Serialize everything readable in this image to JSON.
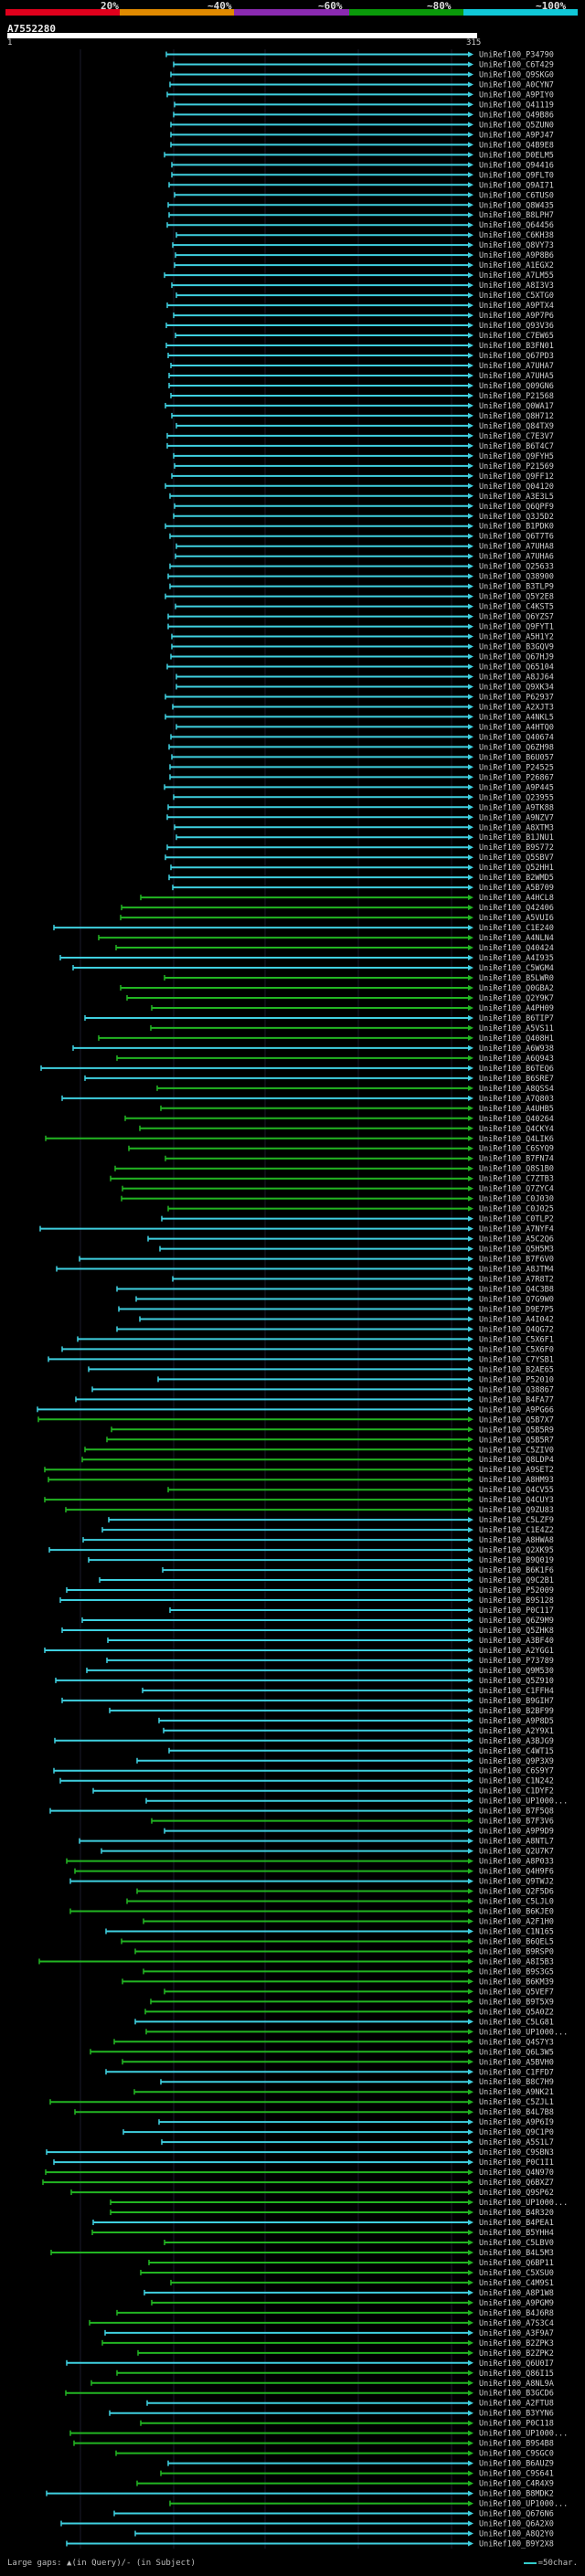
{
  "header": {
    "percent_labels": [
      "20%",
      "~40%",
      "~60%",
      "~80%",
      "~100%"
    ],
    "colorbar": [
      "#e0001c",
      "#e08a00",
      "#8a2ab0",
      "#0a9a0a",
      "#10c8d8"
    ],
    "query_id": "A7552280",
    "ruler_start": "1",
    "ruler_end": "315"
  },
  "hits": {
    "colors": {
      "cyan": "#3fd0e0",
      "green": "#22b522",
      "ids": "#cfcfcf"
    },
    "ids": [
      "UniRef100_P34790",
      "UniRef100_C6T429",
      "UniRef100_Q9SKG0",
      "UniRef100_A0CYN7",
      "UniRef100_A9PIY0",
      "UniRef100_Q41119",
      "UniRef100_Q49B86",
      "UniRef100_Q5ZUN0",
      "UniRef100_A9PJ47",
      "UniRef100_Q4B9E8",
      "UniRef100_D0ELM5",
      "UniRef100_Q94416",
      "UniRef100_Q9FLT0",
      "UniRef100_Q9AI71",
      "UniRef100_C6TUS0",
      "UniRef100_Q8W435",
      "UniRef100_B8LPH7",
      "UniRef100_Q64456",
      "UniRef100_C6KH38",
      "UniRef100_Q8VY73",
      "UniRef100_A9P8B6",
      "UniRef100_A1EGX2",
      "UniRef100_A7LM55",
      "UniRef100_A8I3V3",
      "UniRef100_C5XTG0",
      "UniRef100_A9PTX4",
      "UniRef100_A9P7P6",
      "UniRef100_Q93V36",
      "UniRef100_C7EW65",
      "UniRef100_B3FN01",
      "UniRef100_Q67PD3",
      "UniRef100_A7UHA7",
      "UniRef100_A7UHA5",
      "UniRef100_Q09GN6",
      "UniRef100_P21568",
      "UniRef100_Q0WA17",
      "UniRef100_Q8H712",
      "UniRef100_Q84TX9",
      "UniRef100_C7E3V7",
      "UniRef100_B6T4C7",
      "UniRef100_Q9FYH5",
      "UniRef100_P21569",
      "UniRef100_Q9FF12",
      "UniRef100_Q04120",
      "UniRef100_A3E3L5",
      "UniRef100_Q6QPF9",
      "UniRef100_Q3J5D2",
      "UniRef100_B1PDK0",
      "UniRef100_Q6T7T6",
      "UniRef100_A7UHA8",
      "UniRef100_A7UHA6",
      "UniRef100_Q25633",
      "UniRef100_Q38900",
      "UniRef100_B3TLP9",
      "UniRef100_Q5Y2E8",
      "UniRef100_C4KST5",
      "UniRef100_Q6YZS7",
      "UniRef100_Q9FYT1",
      "UniRef100_A5H1Y2",
      "UniRef100_B3GQV9",
      "UniRef100_Q67HJ9",
      "UniRef100_Q65104",
      "UniRef100_A8JJ64",
      "UniRef100_Q9XK34",
      "UniRef100_P62937",
      "UniRef100_A2XJT3",
      "UniRef100_A4NKL5",
      "UniRef100_A4HTQ0",
      "UniRef100_Q40674",
      "UniRef100_Q6ZH98",
      "UniRef100_B6U057",
      "UniRef100_P24525",
      "UniRef100_P26867",
      "UniRef100_A9P445",
      "UniRef100_Q23955",
      "UniRef100_A9TK88",
      "UniRef100_A9NZV7",
      "UniRef100_A8XTM3",
      "UniRef100_B1JNU1",
      "UniRef100_B9S772",
      "UniRef100_Q5SBV7",
      "UniRef100_Q52HH1",
      "UniRef100_B2WMD5",
      "UniRef100_A5B709",
      "UniRef100_A4HCL8",
      "UniRef100_Q42406",
      "UniRef100_A5VUI6",
      "UniRef100_C1E240",
      "UniRef100_A4NLN4",
      "UniRef100_Q40424",
      "UniRef100_A4I935",
      "UniRef100_C5WGM4",
      "UniRef100_B5LWR0",
      "UniRef100_Q0GBA2",
      "UniRef100_Q2Y9K7",
      "UniRef100_A4PH09",
      "UniRef100_B6TIP7",
      "UniRef100_A5VS11",
      "UniRef100_Q408H1",
      "UniRef100_A6W938",
      "UniRef100_A6Q943",
      "UniRef100_B6TEQ6",
      "UniRef100_B6SRE7",
      "UniRef100_A8QSS4",
      "UniRef100_A7Q803",
      "UniRef100_A4UHB5",
      "UniRef100_Q40264",
      "UniRef100_Q4CKY4",
      "UniRef100_Q4LIK6",
      "UniRef100_C6SYQ9",
      "UniRef100_B7FN74",
      "UniRef100_Q8S1B0",
      "UniRef100_C7ZTB3",
      "UniRef100_Q7ZYC4",
      "UniRef100_C0J030",
      "UniRef100_C0J025",
      "UniRef100_C0TLP2",
      "UniRef100_A7NYF4",
      "UniRef100_A5C2Q6",
      "UniRef100_Q5H5M3",
      "UniRef100_B7F6V0",
      "UniRef100_A8JTM4",
      "UniRef100_A7R8T2",
      "UniRef100_Q4C3B8",
      "UniRef100_Q7G9W0",
      "UniRef100_D9E7P5",
      "UniRef100_A4I042",
      "UniRef100_Q4QG72",
      "UniRef100_C5X6F1",
      "UniRef100_C5X6F0",
      "UniRef100_C7YSB1",
      "UniRef100_B2AE65",
      "UniRef100_P52010",
      "UniRef100_Q38867",
      "UniRef100_B4FA77",
      "UniRef100_A9PG66",
      "UniRef100_Q5B7X7",
      "UniRef100_Q5B5R9",
      "UniRef100_Q5B5R7",
      "UniRef100_C5ZIV0",
      "UniRef100_Q8LDP4",
      "UniRef100_A9SET2",
      "UniRef100_A8HM93",
      "UniRef100_Q4CV55",
      "UniRef100_Q4CUY3",
      "UniRef100_Q9ZU83",
      "UniRef100_C5LZF9",
      "UniRef100_C1E4Z2",
      "UniRef100_A8HWA8",
      "UniRef100_Q2XK95",
      "UniRef100_B9Q019",
      "UniRef100_B6K1F6",
      "UniRef100_Q9C2B1",
      "UniRef100_P52009",
      "UniRef100_B9S128",
      "UniRef100_P0C117",
      "UniRef100_Q6Z9M9",
      "UniRef100_Q5ZHK8",
      "UniRef100_A3BF40",
      "UniRef100_A2YGG1",
      "UniRef100_P73789",
      "UniRef100_Q9M530",
      "UniRef100_Q5Z910",
      "UniRef100_C1FFH4",
      "UniRef100_B9GIH7",
      "UniRef100_B2BF99",
      "UniRef100_A9P8D5",
      "UniRef100_A2Y9X1",
      "UniRef100_A3BJG9",
      "UniRef100_C4WT15",
      "UniRef100_Q9P3X9",
      "UniRef100_C6S9Y7",
      "UniRef100_C1N242",
      "UniRef100_C1DYF2",
      "UniRef100_UP1000...",
      "UniRef100_B7F5Q8",
      "UniRef100_B7F3V6",
      "UniRef100_A9P9D9",
      "UniRef100_A8NTL7",
      "UniRef100_Q2U7K7",
      "UniRef100_A8P033",
      "UniRef100_Q4H9F6",
      "UniRef100_Q9TWJ2",
      "UniRef100_Q2F5D6",
      "UniRef100_C5LJL0",
      "UniRef100_B6KJE0",
      "UniRef100_A2F1H0",
      "UniRef100_C1N165",
      "UniRef100_B6QEL5",
      "UniRef100_B9RSP0",
      "UniRef100_A8I5B3",
      "UniRef100_B9S3G5",
      "UniRef100_B6KM39",
      "UniRef100_Q5VEF7",
      "UniRef100_B9T5X9",
      "UniRef100_Q5A0Z2",
      "UniRef100_C5LG81",
      "UniRef100_UP1000...",
      "UniRef100_Q4S7Y3",
      "UniRef100_Q6L3W5",
      "UniRef100_A5BVH0",
      "UniRef100_C1FFD7",
      "UniRef100_B8C7H9",
      "UniRef100_A9NK21",
      "UniRef100_C5ZJL1",
      "UniRef100_B4L7B8",
      "UniRef100_A9P6I9",
      "UniRef100_Q9C1P0",
      "UniRef100_A5S1L7",
      "UniRef100_C9SBN3",
      "UniRef100_P0C1I1",
      "UniRef100_Q4N970",
      "UniRef100_Q6BXZ7",
      "UniRef100_Q9SP62",
      "UniRef100_UP1000...",
      "UniRef100_B4R320",
      "UniRef100_B4PEA1",
      "UniRef100_B5YHH4",
      "UniRef100_C5LBV0",
      "UniRef100_B4L5M3",
      "UniRef100_Q6BP11",
      "UniRef100_C5XSU0",
      "UniRef100_C4M9S1",
      "UniRef100_A8P1W8",
      "UniRef100_A9PGM9",
      "UniRef100_B4J6R8",
      "UniRef100_A7S3C4",
      "UniRef100_A3F9A7",
      "UniRef100_B2ZPK3",
      "UniRef100_B2ZPK2",
      "UniRef100_Q6U0I7",
      "UniRef100_Q86I15",
      "UniRef100_A8NL9A",
      "UniRef100_B3GCD6",
      "UniRef100_A2FTU8",
      "UniRef100_B3YYN6",
      "UniRef100_P0C118",
      "UniRef100_UP1000...",
      "UniRef100_B9S4B8",
      "UniRef100_C9SGC0",
      "UniRef100_B6AUZ9",
      "UniRef100_C9S641",
      "UniRef100_C4R4X9",
      "UniRef100_B8MDK2",
      "UniRef100_UP1000...",
      "UniRef100_Q676N6",
      "UniRef100_Q6A2X0",
      "UniRef100_A8Q2Y0",
      "UniRef100_B9Y2X8"
    ]
  },
  "legend": {
    "left": "Large gaps: ▲(in Query)/- (in Subject)",
    "right": "=50char."
  }
}
